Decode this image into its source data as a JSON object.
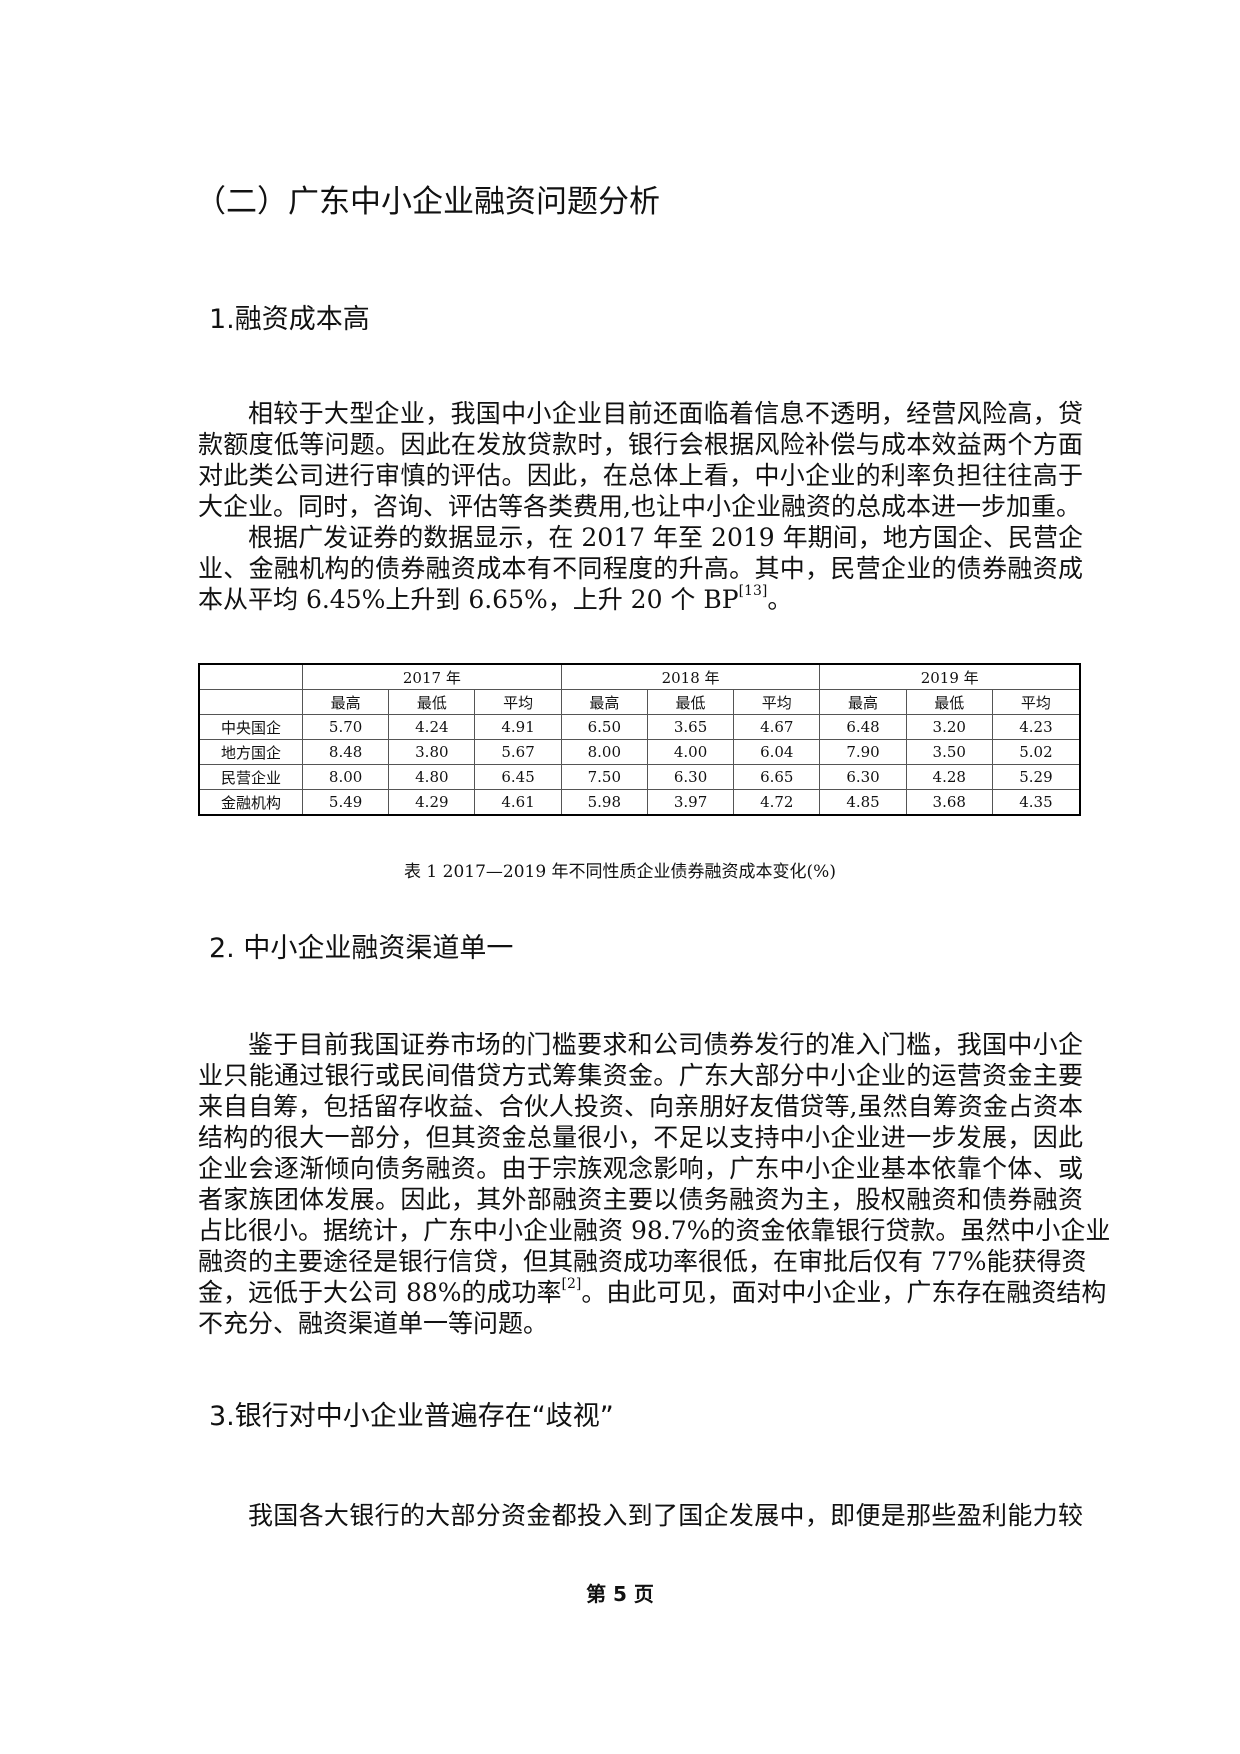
{
  "section_title": "（二）广东中小企业融资问题分析",
  "sub1": {
    "title": "1.融资成本高",
    "lines": [
      {
        "text": "相较于大型企业，我国中小企业目前还面临着信息不透明，经营风险高，贷",
        "indent": true
      },
      {
        "text": "款额度低等问题。因此在发放贷款时，银行会根据风险补偿与成本效益两个方面"
      },
      {
        "text": "对此类公司进行审慎的评估。因此，在总体上看，中小企业的利率负担往往高于"
      },
      {
        "text": "大企业。同时，咨询、评估等各类费用,也让中小企业融资的总成本进一步加重。",
        "last": true
      },
      {
        "text": "根据广发证券的数据显示，在 2017 年至 2019 年期间，地方国企、民营企",
        "indent": true
      },
      {
        "text": "业、金融机构的债券融资成本有不同程度的升高。其中，民营企业的债券融资成"
      },
      {
        "text": "本从平均 6.45%上升到 6.65%，上升 20 个 BP",
        "sup": "[13]",
        "after": "。",
        "last": true
      }
    ]
  },
  "table": {
    "years": [
      "2017 年",
      "2018 年",
      "2019 年"
    ],
    "subheaders": [
      "最高",
      "最低",
      "平均"
    ],
    "rows": [
      {
        "label": "中央国企",
        "values": [
          "5.70",
          "4.24",
          "4.91",
          "6.50",
          "3.65",
          "4.67",
          "6.48",
          "3.20",
          "4.23"
        ]
      },
      {
        "label": "地方国企",
        "values": [
          "8.48",
          "3.80",
          "5.67",
          "8.00",
          "4.00",
          "6.04",
          "7.90",
          "3.50",
          "5.02"
        ]
      },
      {
        "label": "民营企业",
        "values": [
          "8.00",
          "4.80",
          "6.45",
          "7.50",
          "6.30",
          "6.65",
          "6.30",
          "4.28",
          "5.29"
        ]
      },
      {
        "label": "金融机构",
        "values": [
          "5.49",
          "4.29",
          "4.61",
          "5.98",
          "3.97",
          "4.72",
          "4.85",
          "3.68",
          "4.35"
        ]
      }
    ],
    "caption": "表 1  2017—2019 年不同性质企业债券融资成本变化(%)"
  },
  "sub2": {
    "title": "2. 中小企业融资渠道单一",
    "lines": [
      {
        "text": "鉴于目前我国证券市场的门槛要求和公司债券发行的准入门槛，我国中小企",
        "indent": true
      },
      {
        "text": "业只能通过银行或民间借贷方式筹集资金。广东大部分中小企业的运营资金主要"
      },
      {
        "text": "来自自筹，包括留存收益、合伙人投资、向亲朋好友借贷等,虽然自筹资金占资本"
      },
      {
        "text": "结构的很大一部分，但其资金总量很小，不足以支持中小企业进一步发展，因此"
      },
      {
        "text": "企业会逐渐倾向债务融资。由于宗族观念影响，广东中小企业基本依靠个体、或"
      },
      {
        "text": "者家族团体发展。因此，其外部融资主要以债务融资为主，股权融资和债券融资"
      },
      {
        "text": "占比很小。据统计，广东中小企业融资 98.7%的资金依靠银行贷款。虽然中小企业"
      },
      {
        "text": "融资的主要途径是银行信贷，但其融资成功率很低，在审批后仅有 77%能获得资"
      },
      {
        "text": "金，远低于大公司 88%的成功率",
        "sup": "[2]",
        "after": "。由此可见，面对中小企业，广东存在融资结构"
      },
      {
        "text": "不充分、融资渠道单一等问题。",
        "last": true
      }
    ]
  },
  "sub3": {
    "title": "3.银行对中小企业普遍存在“歧视”",
    "lines": [
      {
        "text": "我国各大银行的大部分资金都投入到了国企发展中，即便是那些盈利能力较",
        "indent": true
      }
    ]
  },
  "page_number": "第 5 页"
}
